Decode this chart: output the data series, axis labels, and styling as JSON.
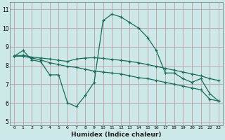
{
  "xlabel": "Humidex (Indice chaleur)",
  "bg_color": "#cce8e8",
  "grid_color": "#b8a0a0",
  "line_color": "#1a6b5a",
  "xlim": [
    -0.5,
    23.5
  ],
  "ylim": [
    4.8,
    11.4
  ],
  "yticks": [
    5,
    6,
    7,
    8,
    9,
    10,
    11
  ],
  "xticks": [
    0,
    1,
    2,
    3,
    4,
    5,
    6,
    7,
    8,
    9,
    10,
    11,
    12,
    13,
    14,
    15,
    16,
    17,
    18,
    19,
    20,
    21,
    22,
    23
  ],
  "xtick_labels": [
    "0",
    "1",
    "2",
    "3",
    "4",
    "5",
    "6",
    "7",
    "8",
    "9",
    "10",
    "11",
    "12",
    "13",
    "14",
    "15",
    "16",
    "17",
    "18",
    "19",
    "20",
    "21",
    "22",
    "23"
  ],
  "line1_x": [
    0,
    1,
    2,
    3,
    4,
    5,
    6,
    7,
    8,
    9,
    10,
    11,
    12,
    13,
    14,
    15,
    16,
    17,
    18,
    19,
    20,
    21,
    22,
    23
  ],
  "line1_y": [
    8.5,
    8.8,
    8.3,
    8.2,
    7.5,
    7.5,
    6.0,
    5.8,
    6.4,
    7.1,
    10.4,
    10.75,
    10.6,
    10.3,
    10.0,
    9.5,
    8.8,
    7.6,
    7.6,
    7.3,
    7.1,
    7.3,
    6.5,
    6.1
  ],
  "line2_x": [
    0,
    1,
    2,
    3,
    4,
    5,
    6,
    7,
    8,
    9,
    10,
    11,
    12,
    13,
    14,
    15,
    16,
    17,
    18,
    19,
    20,
    21,
    22,
    23
  ],
  "line2_y": [
    8.5,
    8.5,
    8.4,
    8.3,
    8.15,
    8.05,
    7.95,
    7.9,
    7.8,
    7.7,
    7.65,
    7.6,
    7.55,
    7.45,
    7.35,
    7.3,
    7.2,
    7.1,
    7.0,
    6.9,
    6.8,
    6.7,
    6.2,
    6.1
  ],
  "line3_x": [
    0,
    1,
    2,
    3,
    4,
    5,
    6,
    7,
    8,
    9,
    10,
    11,
    12,
    13,
    14,
    15,
    16,
    17,
    18,
    19,
    20,
    21,
    22,
    23
  ],
  "line3_y": [
    8.5,
    8.55,
    8.45,
    8.4,
    8.35,
    8.28,
    8.22,
    8.35,
    8.4,
    8.42,
    8.38,
    8.33,
    8.28,
    8.22,
    8.15,
    8.05,
    7.95,
    7.85,
    7.75,
    7.65,
    7.55,
    7.45,
    7.3,
    7.2
  ]
}
